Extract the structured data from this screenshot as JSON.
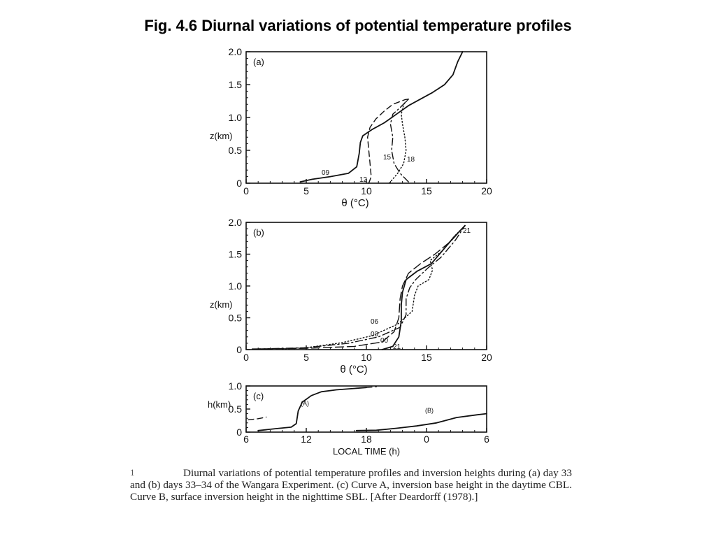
{
  "slide": {
    "title": "Fig. 4.6  Diurnal variations of potential temperature profiles"
  },
  "caption": {
    "marker": "1",
    "text": "Diurnal variations of potential temperature profiles and inversion heights during (a) day 33 and (b) days 33–34 of the Wangara Experiment. (c) Curve A, inversion base height in the daytime CBL. Curve B, surface inversion height in the nighttime SBL. [After Deardorff (1978).]"
  },
  "chart_data": [
    {
      "type": "line",
      "panel_label": "(a)",
      "xlabel": "θ (°C)",
      "ylabel": "z(km)",
      "xlim": [
        0,
        20
      ],
      "ylim": [
        0,
        2.0
      ],
      "xticks": [
        "0",
        "5",
        "10",
        "15",
        "20"
      ],
      "yticks": [
        "0",
        "0.5",
        "1.0",
        "1.5",
        "2.0"
      ],
      "series": [
        {
          "name": "09",
          "style": "solid",
          "points": [
            [
              4.5,
              0.02
            ],
            [
              5.5,
              0.06
            ],
            [
              7,
              0.1
            ],
            [
              8.5,
              0.15
            ],
            [
              9.2,
              0.25
            ],
            [
              9.4,
              0.45
            ],
            [
              9.5,
              0.62
            ],
            [
              9.7,
              0.72
            ],
            [
              10.5,
              0.82
            ],
            [
              11.5,
              0.92
            ],
            [
              12.5,
              1.05
            ],
            [
              13.5,
              1.18
            ],
            [
              14.5,
              1.28
            ],
            [
              15.5,
              1.38
            ],
            [
              16.5,
              1.5
            ],
            [
              17.2,
              1.65
            ],
            [
              17.6,
              1.85
            ],
            [
              18,
              2.0
            ]
          ]
        },
        {
          "name": "12",
          "style": "dashed",
          "points": [
            [
              10.2,
              0.0
            ],
            [
              10.4,
              0.1
            ],
            [
              10.3,
              0.3
            ],
            [
              10.2,
              0.5
            ],
            [
              10.1,
              0.7
            ],
            [
              10.3,
              0.85
            ],
            [
              10.8,
              0.98
            ],
            [
              11.5,
              1.1
            ],
            [
              12.2,
              1.2
            ],
            [
              13.2,
              1.27
            ],
            [
              13.5,
              1.28
            ]
          ]
        },
        {
          "name": "15",
          "style": "dashdot",
          "points": [
            [
              13.5,
              0.02
            ],
            [
              12.8,
              0.15
            ],
            [
              12.3,
              0.3
            ],
            [
              12.1,
              0.5
            ],
            [
              12.2,
              0.7
            ],
            [
              12.0,
              0.9
            ],
            [
              12.2,
              1.05
            ],
            [
              12.8,
              1.15
            ],
            [
              13.5,
              1.28
            ]
          ]
        },
        {
          "name": "18",
          "style": "dotted",
          "points": [
            [
              11.9,
              0.0
            ],
            [
              12.6,
              0.15
            ],
            [
              13.1,
              0.3
            ],
            [
              13.3,
              0.5
            ],
            [
              13.2,
              0.7
            ],
            [
              13.0,
              0.9
            ],
            [
              12.9,
              1.05
            ],
            [
              13.1,
              1.2
            ],
            [
              13.5,
              1.28
            ]
          ]
        }
      ],
      "annotations": [
        "09",
        "12",
        "15",
        "18"
      ]
    },
    {
      "type": "line",
      "panel_label": "(b)",
      "xlabel": "θ (°C)",
      "ylabel": "z(km)",
      "xlim": [
        0,
        20
      ],
      "ylim": [
        0,
        2.0
      ],
      "xticks": [
        "0",
        "5",
        "10",
        "15",
        "20"
      ],
      "yticks": [
        "0",
        "0.5",
        "1.0",
        "1.5",
        "2.0"
      ],
      "series": [
        {
          "name": "21",
          "style": "solid",
          "points": [
            [
              11.3,
              0.0
            ],
            [
              12.2,
              0.05
            ],
            [
              12.7,
              0.2
            ],
            [
              12.9,
              0.45
            ],
            [
              12.9,
              0.7
            ],
            [
              13.0,
              0.9
            ],
            [
              13.3,
              1.1
            ],
            [
              14.2,
              1.23
            ],
            [
              15.4,
              1.35
            ],
            [
              16.3,
              1.55
            ],
            [
              17.2,
              1.75
            ],
            [
              18.2,
              1.95
            ]
          ]
        },
        {
          "name": "00",
          "style": "longdash",
          "points": [
            [
              0.5,
              0.01
            ],
            [
              5,
              0.02
            ],
            [
              9,
              0.05
            ],
            [
              11.3,
              0.12
            ],
            [
              12.3,
              0.28
            ],
            [
              12.7,
              0.5
            ],
            [
              12.8,
              0.8
            ],
            [
              13.0,
              1.0
            ],
            [
              13.5,
              1.2
            ],
            [
              14.5,
              1.35
            ],
            [
              15.7,
              1.5
            ],
            [
              17,
              1.7
            ],
            [
              18.2,
              1.95
            ]
          ]
        },
        {
          "name": "03",
          "style": "dashdot",
          "points": [
            [
              1,
              0.01
            ],
            [
              5,
              0.03
            ],
            [
              8.5,
              0.1
            ],
            [
              11,
              0.2
            ],
            [
              12.8,
              0.35
            ],
            [
              13.3,
              0.55
            ],
            [
              13.3,
              0.8
            ],
            [
              13.6,
              0.97
            ],
            [
              14.1,
              1.1
            ],
            [
              15.1,
              1.28
            ],
            [
              16.2,
              1.45
            ],
            [
              17.4,
              1.72
            ],
            [
              18.2,
              1.95
            ]
          ]
        },
        {
          "name": "06",
          "style": "dotted",
          "points": [
            [
              3,
              0.01
            ],
            [
              5,
              0.03
            ],
            [
              8,
              0.11
            ],
            [
              10.5,
              0.22
            ],
            [
              12.6,
              0.4
            ],
            [
              13.8,
              0.6
            ],
            [
              14.0,
              0.85
            ],
            [
              14.3,
              1.0
            ],
            [
              15.2,
              1.1
            ],
            [
              15.5,
              1.25
            ],
            [
              15.3,
              1.4
            ],
            [
              16.3,
              1.55
            ],
            [
              17.3,
              1.78
            ],
            [
              18.2,
              1.95
            ]
          ]
        }
      ],
      "annotations": [
        "06",
        "03",
        "00",
        "21",
        "21"
      ]
    },
    {
      "type": "line",
      "panel_label": "(c)",
      "xlabel": "LOCAL TIME (h)",
      "ylabel": "h(km)",
      "xlim": [
        6,
        30
      ],
      "ylim": [
        0,
        1.2
      ],
      "xticks": [
        "6",
        "12",
        "18",
        "0",
        "6"
      ],
      "yticks": [
        "0",
        "0.5",
        "1.0"
      ],
      "series": [
        {
          "name": "(A)",
          "style": "solid",
          "points": [
            [
              7.2,
              0.04
            ],
            [
              9,
              0.09
            ],
            [
              10.5,
              0.13
            ],
            [
              11,
              0.22
            ],
            [
              11.2,
              0.55
            ],
            [
              11.6,
              0.78
            ],
            [
              12.5,
              0.95
            ],
            [
              13.5,
              1.05
            ],
            [
              15,
              1.1
            ],
            [
              16.5,
              1.13
            ],
            [
              18,
              1.16
            ]
          ]
        },
        {
          "name": "(A) dashed",
          "style": "dashed",
          "points": [
            [
              6.2,
              0.32
            ],
            [
              7.2,
              0.35
            ],
            [
              8,
              0.39
            ]
          ]
        },
        {
          "name": "(A) dashed end",
          "style": "dashed",
          "points": [
            [
              18,
              1.16
            ],
            [
              19,
              1.18
            ]
          ]
        },
        {
          "name": "(B)",
          "style": "solid",
          "points": [
            [
              17,
              0.04
            ],
            [
              19,
              0.05
            ],
            [
              21,
              0.1
            ],
            [
              23,
              0.16
            ],
            [
              25,
              0.24
            ],
            [
              27,
              0.38
            ],
            [
              29,
              0.45
            ],
            [
              30,
              0.48
            ]
          ]
        }
      ],
      "annotations": [
        "(A)",
        "(B)"
      ]
    }
  ]
}
